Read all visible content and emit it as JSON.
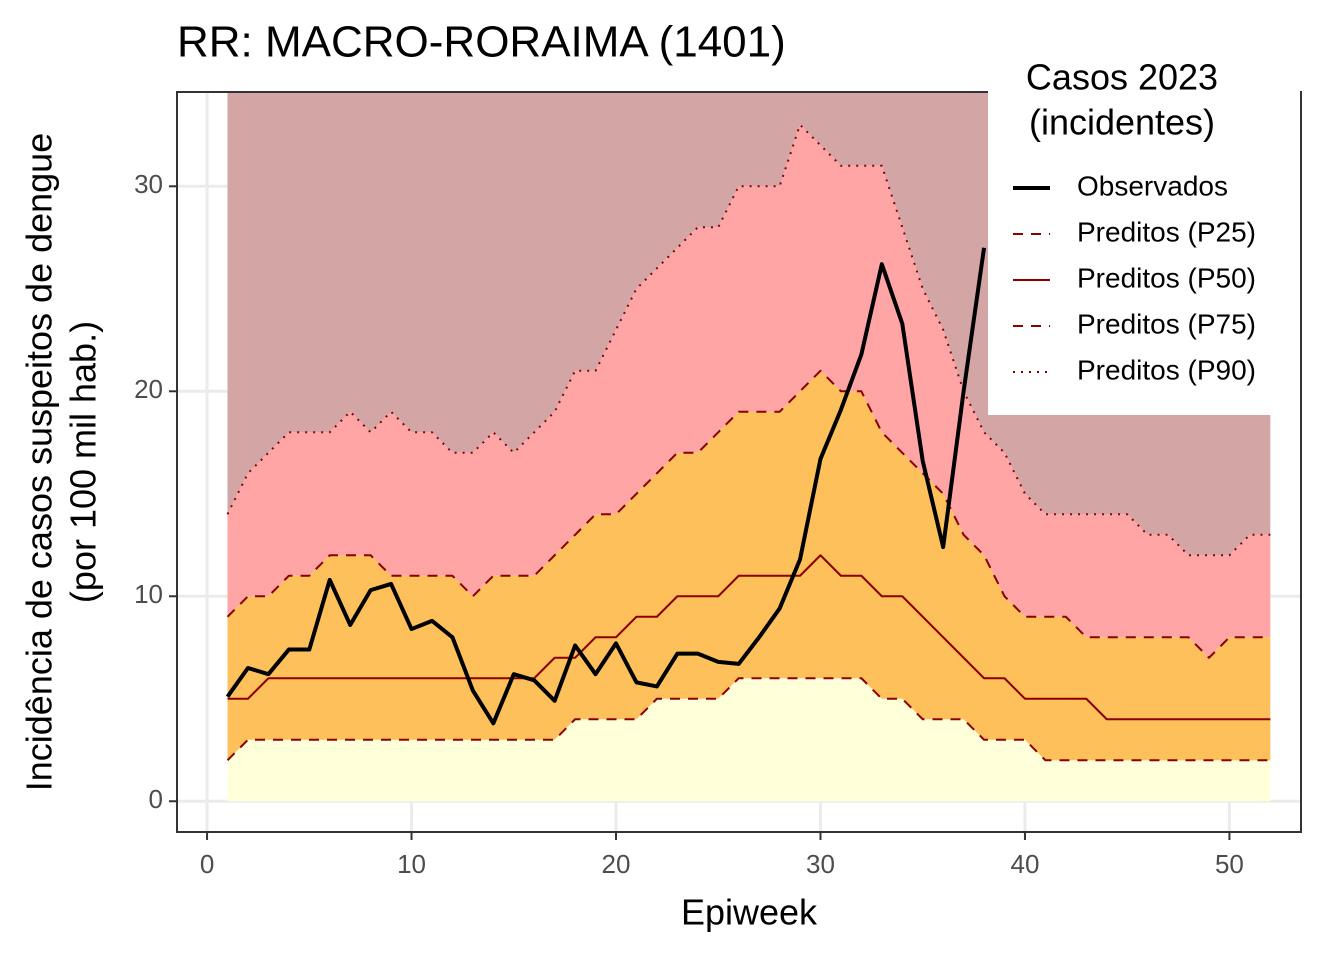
{
  "chart_data": {
    "type": "line",
    "title": "RR: MACRO-RORAIMA (1401)",
    "x_label": "Epiweek",
    "y_label": [
      "Incidência de casos suspeitos de dengue",
      "(por 100 mil hab.)"
    ],
    "legend_title": [
      "Casos 2023",
      "(incidentes)"
    ],
    "legend": "top-right",
    "grid": true,
    "xlim": [
      -1.47,
      53.5
    ],
    "ylim": [
      -1.5,
      34.6
    ],
    "xticks": [
      0,
      10,
      20,
      30,
      40,
      50
    ],
    "yticks": [
      0,
      10,
      20,
      30
    ],
    "band_colors": [
      "#ffffd9",
      "#fdc05a",
      "#ffa5a5",
      "#d4a5a5"
    ],
    "x": [
      1,
      2,
      3,
      4,
      5,
      6,
      7,
      8,
      9,
      10,
      11,
      12,
      13,
      14,
      15,
      16,
      17,
      18,
      19,
      20,
      21,
      22,
      23,
      24,
      25,
      26,
      27,
      28,
      29,
      30,
      31,
      32,
      33,
      34,
      35,
      36,
      37,
      38,
      39,
      40,
      41,
      42,
      43,
      44,
      45,
      46,
      47,
      48,
      49,
      50,
      51,
      52
    ],
    "series": [
      {
        "name": "Observados",
        "color": "#000000",
        "style": "solid",
        "width": 4,
        "values": [
          5.1,
          6.5,
          6.2,
          7.4,
          7.4,
          10.8,
          8.6,
          10.3,
          10.6,
          8.4,
          8.8,
          8.0,
          5.4,
          3.8,
          6.2,
          5.9,
          4.9,
          7.6,
          6.2,
          7.7,
          5.8,
          5.6,
          7.2,
          7.2,
          6.8,
          6.7,
          8.0,
          9.4,
          11.8,
          16.7,
          19.1,
          21.8,
          26.2,
          23.3,
          16.6,
          12.4,
          20,
          27.0,
          null,
          null,
          null,
          null,
          null,
          null,
          null,
          null,
          null,
          null,
          null,
          null,
          null,
          null
        ]
      },
      {
        "name": "Preditos (P25)",
        "color": "#8b0000",
        "style": "dashed",
        "width": 2,
        "values": [
          2,
          3,
          3,
          3,
          3,
          3,
          3,
          3,
          3,
          3,
          3,
          3,
          3,
          3,
          3,
          3,
          3,
          4,
          4,
          4,
          4,
          5,
          5,
          5,
          5,
          6,
          6,
          6,
          6,
          6,
          6,
          6,
          5,
          5,
          4,
          4,
          4,
          3,
          3,
          3,
          2,
          2,
          2,
          2,
          2,
          2,
          2,
          2,
          2,
          2,
          2,
          2
        ]
      },
      {
        "name": "Preditos (P50)",
        "color": "#8b0000",
        "style": "solid",
        "width": 2,
        "values": [
          5,
          5,
          6,
          6,
          6,
          6,
          6,
          6,
          6,
          6,
          6,
          6,
          6,
          6,
          6,
          6,
          7,
          7,
          8,
          8,
          9,
          9,
          10,
          10,
          10,
          11,
          11,
          11,
          11,
          12,
          11,
          11,
          10,
          10,
          9,
          8,
          7,
          6,
          6,
          5,
          5,
          5,
          5,
          4,
          4,
          4,
          4,
          4,
          4,
          4,
          4,
          4
        ]
      },
      {
        "name": "Preditos (P75)",
        "color": "#8b0000",
        "style": "dashed",
        "width": 2,
        "values": [
          9,
          10,
          10,
          11,
          11,
          12,
          12,
          12,
          11,
          11,
          11,
          11,
          10,
          11,
          11,
          11,
          12,
          13,
          14,
          14,
          15,
          16,
          17,
          17,
          18,
          19,
          19,
          19,
          20,
          21,
          20,
          20,
          18,
          17,
          16,
          15,
          13,
          12,
          10,
          9,
          9,
          9,
          8,
          8,
          8,
          8,
          8,
          8,
          7,
          8,
          8,
          8
        ]
      },
      {
        "name": "Preditos (P90)",
        "color": "#8b0000",
        "style": "dotted",
        "width": 2,
        "values": [
          14,
          16,
          17,
          18,
          18,
          18,
          19,
          18,
          19,
          18,
          18,
          17,
          17,
          18,
          17,
          18,
          19,
          21,
          21,
          23,
          25,
          26,
          27,
          28,
          28,
          30,
          30,
          30,
          33,
          32,
          31,
          31,
          31,
          28,
          25,
          23,
          20,
          18,
          17,
          15,
          14,
          14,
          14,
          14,
          14,
          13,
          13,
          12,
          12,
          12,
          13,
          13
        ]
      }
    ]
  }
}
